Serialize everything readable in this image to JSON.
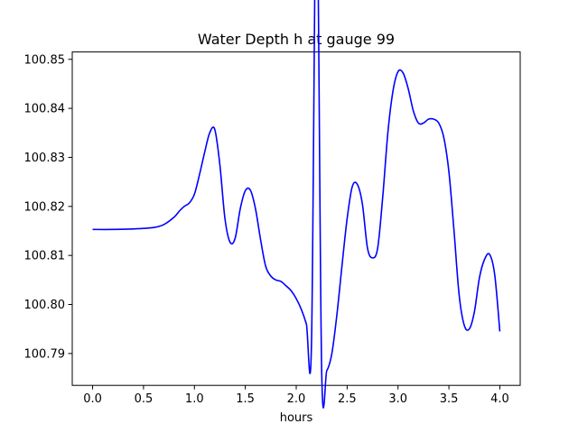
{
  "chart_data": {
    "type": "line",
    "title": "Water Depth h at gauge 99",
    "xlabel": "hours",
    "ylabel": "",
    "xlim": [
      -0.2,
      4.2
    ],
    "ylim": [
      100.7835,
      100.8515
    ],
    "xticks": [
      0.0,
      0.5,
      1.0,
      1.5,
      2.0,
      2.5,
      3.0,
      3.5,
      4.0
    ],
    "xtick_labels": [
      "0.0",
      "0.5",
      "1.0",
      "1.5",
      "2.0",
      "2.5",
      "3.0",
      "3.5",
      "4.0"
    ],
    "yticks": [
      100.79,
      100.8,
      100.81,
      100.82,
      100.83,
      100.84,
      100.85
    ],
    "ytick_labels": [
      "100.79",
      "100.80",
      "100.81",
      "100.82",
      "100.83",
      "100.84",
      "100.85"
    ],
    "grid": false,
    "legend": "none",
    "series": [
      {
        "color": "#0000ff",
        "x": [
          0.0,
          0.2,
          0.4,
          0.6,
          0.7,
          0.8,
          0.85,
          0.9,
          0.95,
          1.0,
          1.05,
          1.1,
          1.15,
          1.2,
          1.25,
          1.3,
          1.35,
          1.4,
          1.45,
          1.5,
          1.55,
          1.6,
          1.65,
          1.7,
          1.75,
          1.8,
          1.85,
          1.9,
          1.95,
          2.0,
          2.05,
          2.1,
          2.15,
          2.2,
          2.25,
          2.3,
          2.35,
          2.4,
          2.45,
          2.5,
          2.55,
          2.6,
          2.65,
          2.7,
          2.75,
          2.8,
          2.85,
          2.9,
          2.95,
          3.0,
          3.05,
          3.1,
          3.15,
          3.2,
          3.25,
          3.3,
          3.35,
          3.4,
          3.45,
          3.5,
          3.55,
          3.6,
          3.65,
          3.7,
          3.75,
          3.8,
          3.85,
          3.9,
          3.95,
          4.0
        ],
        "values": [
          100.8153,
          100.8153,
          100.8154,
          100.8157,
          100.8163,
          100.8178,
          100.819,
          100.82,
          100.8207,
          100.8225,
          100.8265,
          100.831,
          100.835,
          100.8357,
          100.8285,
          100.8175,
          100.8127,
          100.8135,
          100.8195,
          100.8232,
          100.8233,
          100.8195,
          100.8132,
          100.8078,
          100.8058,
          100.805,
          100.8047,
          100.8038,
          100.8028,
          100.8012,
          100.799,
          100.796,
          100.792,
          100.8875,
          100.7865,
          100.7865,
          100.79,
          100.798,
          100.808,
          100.8175,
          100.824,
          100.8245,
          100.8205,
          100.8115,
          100.8095,
          100.8115,
          100.822,
          100.835,
          100.8435,
          100.8475,
          100.8472,
          100.844,
          100.8395,
          100.837,
          100.837,
          100.8378,
          100.8378,
          100.837,
          100.834,
          100.827,
          100.815,
          100.802,
          100.7958,
          100.795,
          100.7985,
          100.8055,
          100.8092,
          100.8102,
          100.806,
          100.7945
        ]
      }
    ]
  }
}
